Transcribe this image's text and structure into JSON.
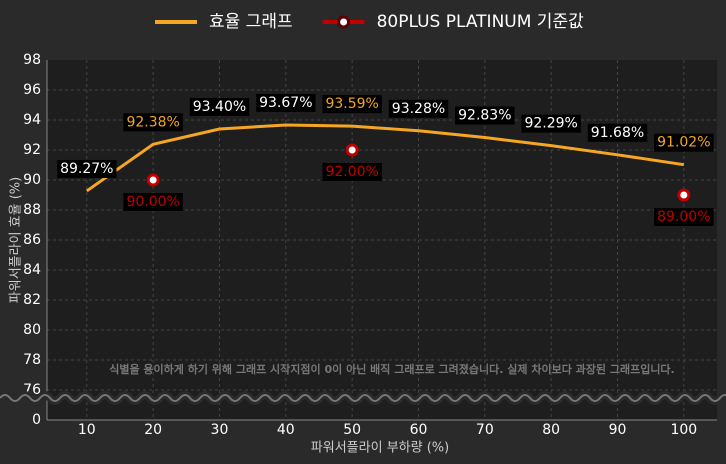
{
  "chart_data": {
    "type": "line",
    "xlabel": "파워서플라이 부하량 (%)",
    "ylabel": "파워서플라이 효율 (%)",
    "annotation": "식별을 용이하게 하기 위해 그래프 시작지점이 0이 아닌 배직 그래프로 그려졌습니다. 실제 차이보다 과장된 그래프입니다.",
    "xlim": [
      4,
      105
    ],
    "xticks": [
      10,
      20,
      30,
      40,
      50,
      60,
      70,
      80,
      90,
      100
    ],
    "ylim": [
      0,
      98
    ],
    "y_break": [
      0,
      76
    ],
    "yticks": [
      0,
      76,
      78,
      80,
      82,
      84,
      86,
      88,
      90,
      92,
      94,
      96,
      98
    ],
    "grid": true,
    "legend": "top",
    "series": [
      {
        "name": "효율 그래프",
        "type": "line",
        "color": "#f5a623",
        "x": [
          10,
          20,
          30,
          40,
          50,
          60,
          70,
          80,
          90,
          100
        ],
        "values": [
          89.27,
          92.38,
          93.4,
          93.67,
          93.59,
          93.28,
          92.83,
          92.29,
          91.68,
          91.02
        ],
        "value_labels": [
          "89.27%",
          "92.38%",
          "93.40%",
          "93.67%",
          "93.59%",
          "93.28%",
          "92.83%",
          "92.29%",
          "91.68%",
          "91.02%"
        ],
        "label_colors": [
          "#ffffff",
          "#f5a623",
          "#ffffff",
          "#ffffff",
          "#f5a623",
          "#ffffff",
          "#ffffff",
          "#ffffff",
          "#ffffff",
          "#f5a623"
        ]
      },
      {
        "name": "80PLUS PLATINUM 기준값",
        "type": "scatter",
        "color": "#c00000",
        "x": [
          20,
          50,
          100
        ],
        "values": [
          90.0,
          92.0,
          89.0
        ],
        "value_labels": [
          "90.00%",
          "92.00%",
          "89.00%"
        ]
      }
    ]
  }
}
